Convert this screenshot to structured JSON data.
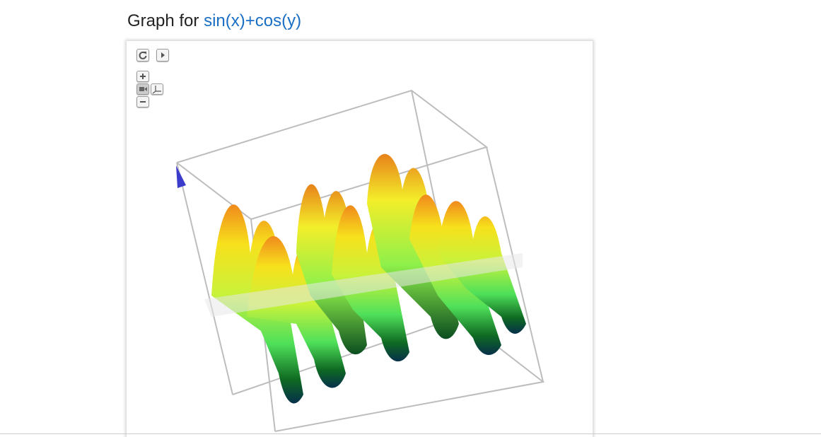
{
  "header": {
    "prefix": "Graph for",
    "expression": "sin(x)+cos(y)"
  }
}
